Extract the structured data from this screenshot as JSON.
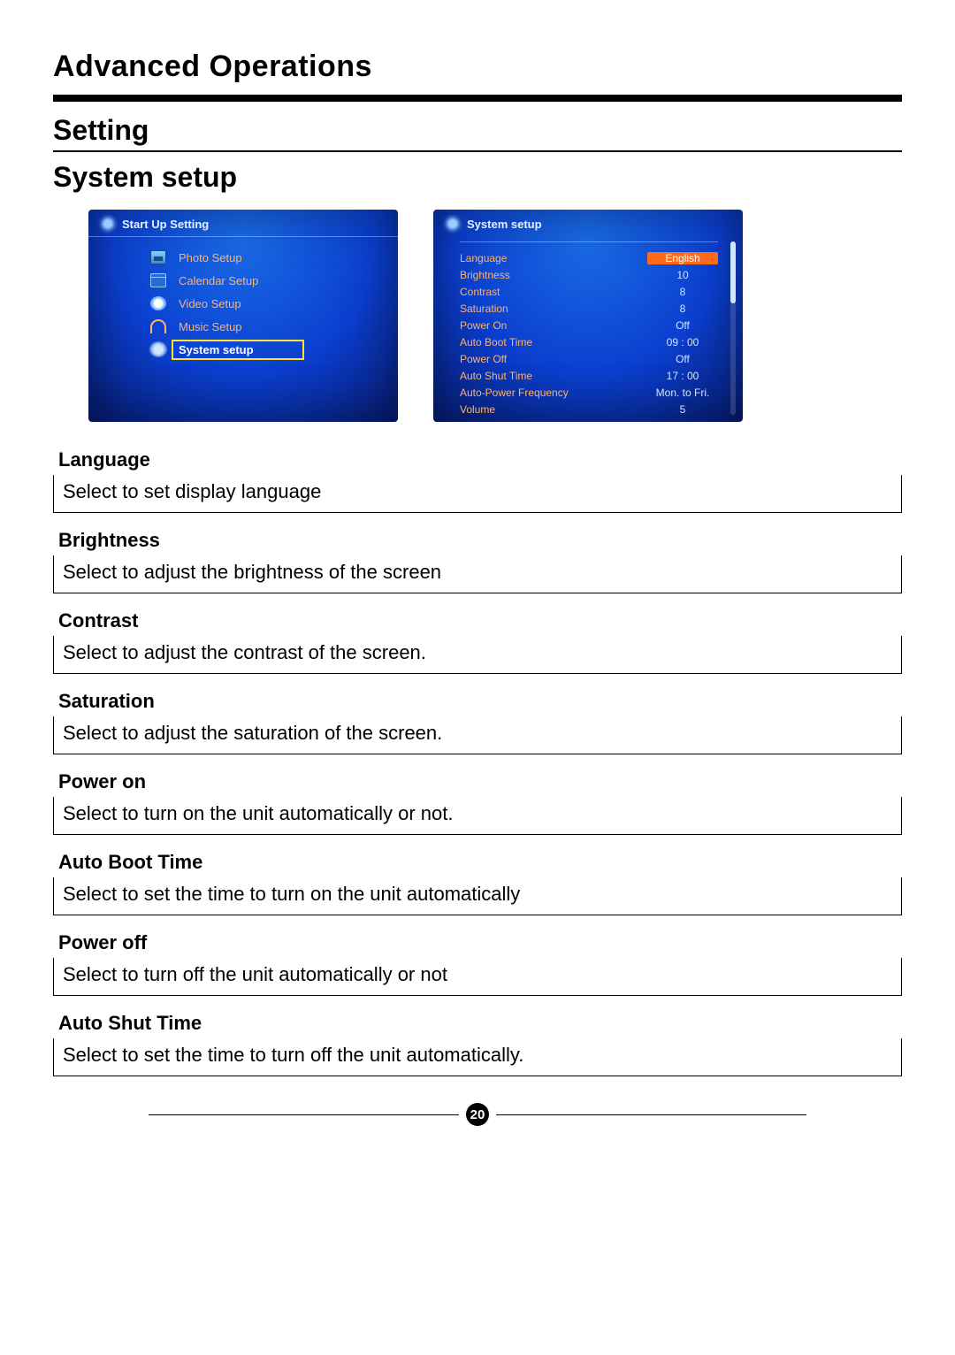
{
  "page": {
    "title": "Advanced Operations",
    "section": "Setting",
    "subsection": "System setup",
    "pageNumber": "20"
  },
  "screenshots": {
    "left": {
      "header": "Start Up Setting",
      "items": [
        {
          "icon": "photo",
          "label": "Photo Setup"
        },
        {
          "icon": "calendar",
          "label": "Calendar Setup"
        },
        {
          "icon": "video",
          "label": "Video Setup"
        },
        {
          "icon": "music",
          "label": "Music Setup"
        },
        {
          "icon": "system",
          "label": "System setup",
          "selected": true
        }
      ]
    },
    "right": {
      "header": "System setup",
      "rows": [
        {
          "label": "Language",
          "value": "English",
          "selected": true
        },
        {
          "label": "Brightness",
          "value": "10"
        },
        {
          "label": "Contrast",
          "value": "8"
        },
        {
          "label": "Saturation",
          "value": "8"
        },
        {
          "label": "Power On",
          "value": "Off"
        },
        {
          "label": "Auto Boot Time",
          "value": "09 : 00"
        },
        {
          "label": "Power Off",
          "value": "Off"
        },
        {
          "label": "Auto Shut Time",
          "value": "17 : 00"
        },
        {
          "label": "Auto-Power Frequency",
          "value": "Mon. to Fri."
        },
        {
          "label": "Volume",
          "value": "5"
        }
      ]
    },
    "colors": {
      "bg_center": "#1a6be6",
      "bg_mid": "#0b3fcf",
      "bg_edge": "#061a6e",
      "text_label": "#ffb36b",
      "text_value": "#cfe6ff",
      "highlight_border": "#ffe236",
      "highlight_bg": "#ff6a1a"
    }
  },
  "entries": [
    {
      "label": "Language",
      "desc": "Select to set display language"
    },
    {
      "label": "Brightness",
      "desc": "Select to adjust the brightness of the screen"
    },
    {
      "label": "Contrast",
      "desc": "Select to adjust the contrast of the screen."
    },
    {
      "label": "Saturation",
      "desc": "Select to adjust the saturation of the screen."
    },
    {
      "label": "Power on",
      "desc": "Select to turn on the unit automatically or not."
    },
    {
      "label": "Auto Boot Time",
      "desc": "Select to set the time to turn on the unit automatically"
    },
    {
      "label": "Power off",
      "desc": "Select to turn off the unit automatically or not"
    },
    {
      "label": "Auto Shut Time",
      "desc": "Select to set the time to turn off the unit automatically."
    }
  ]
}
